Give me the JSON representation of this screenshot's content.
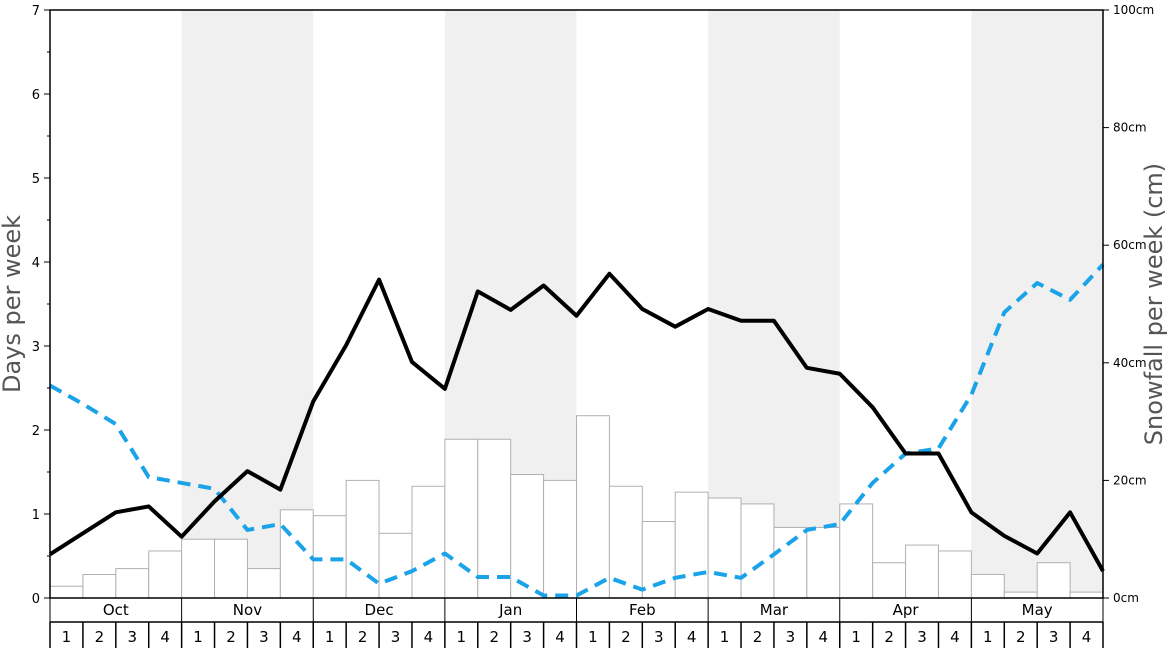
{
  "chart_data": {
    "type": "bar",
    "left_axis": {
      "label": "Days per week",
      "ylim": [
        0,
        7
      ],
      "ticks": [
        0,
        1,
        2,
        3,
        4,
        5,
        6,
        7
      ]
    },
    "right_axis": {
      "label": "Snowfall per week (cm)",
      "ylim": [
        0,
        100
      ],
      "ticks": [
        0,
        20,
        40,
        60,
        80,
        100
      ],
      "tick_labels": [
        "0cm",
        "20cm",
        "40cm",
        "60cm",
        "80cm",
        "100cm"
      ]
    },
    "months": [
      "Oct",
      "Nov",
      "Dec",
      "Jan",
      "Feb",
      "Mar",
      "Apr",
      "May"
    ],
    "weeks_per_month": [
      "1",
      "2",
      "3",
      "4"
    ],
    "snowfall_bars": {
      "axis": "right",
      "values": [
        2,
        4,
        5,
        8,
        10,
        10,
        5,
        15,
        14,
        20,
        11,
        19,
        27,
        27,
        21,
        20,
        31,
        19,
        13,
        18,
        17,
        16,
        12,
        12,
        16,
        6,
        9,
        8,
        4,
        1,
        6,
        1
      ]
    },
    "solid_line": {
      "axis": "left",
      "color": "#000000",
      "values": [
        0.52,
        0.77,
        1.02,
        1.09,
        0.73,
        1.15,
        1.51,
        1.29,
        2.34,
        3.01,
        3.79,
        2.81,
        2.49,
        3.65,
        3.43,
        3.72,
        3.36,
        3.86,
        3.44,
        3.23,
        3.44,
        3.3,
        3.3,
        2.74,
        2.67,
        2.27,
        1.72,
        1.72,
        1.02,
        0.74,
        0.53,
        1.02,
        0.32
      ]
    },
    "dashed_line": {
      "axis": "left",
      "color": "#1aa3e8",
      "values": [
        2.53,
        2.31,
        2.07,
        1.44,
        1.37,
        1.3,
        0.81,
        0.88,
        0.46,
        0.46,
        0.17,
        0.32,
        0.53,
        0.25,
        0.25,
        0.03,
        0.03,
        0.24,
        0.1,
        0.24,
        0.31,
        0.24,
        0.52,
        0.81,
        0.88,
        1.37,
        1.72,
        1.78,
        2.42,
        3.4,
        3.75,
        3.55,
        3.97
      ]
    },
    "shaded_months": [
      "Nov",
      "Jan",
      "Mar",
      "May"
    ],
    "grid": false
  }
}
